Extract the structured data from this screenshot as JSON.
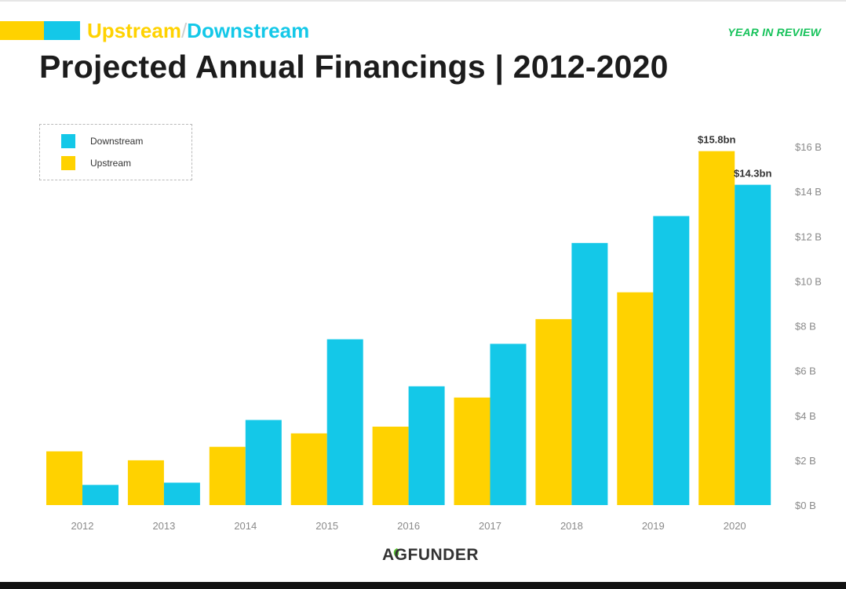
{
  "header": {
    "kicker_upstream": "Upstream",
    "kicker_slash": "/",
    "kicker_downstream": "Downstream",
    "year_in_review": "YEAR IN REVIEW",
    "title": "Projected Annual Financings | 2012-2020"
  },
  "colors": {
    "upstream": "#FFD200",
    "downstream": "#14C8E8",
    "review_green": "#15C25A"
  },
  "logo": {
    "text": "AGFUNDER",
    "icon": "leaf-logo-icon"
  },
  "chart_data": {
    "type": "bar",
    "categories": [
      "2012",
      "2013",
      "2014",
      "2015",
      "2016",
      "2017",
      "2018",
      "2019",
      "2020"
    ],
    "series": [
      {
        "name": "Upstream",
        "color": "#FFD200",
        "values": [
          2.4,
          2.0,
          2.6,
          3.2,
          3.5,
          4.8,
          8.3,
          9.5,
          15.8
        ]
      },
      {
        "name": "Downstream",
        "color": "#14C8E8",
        "values": [
          0.9,
          1.0,
          3.8,
          7.4,
          5.3,
          7.2,
          11.7,
          12.9,
          14.3
        ]
      }
    ],
    "data_labels": [
      {
        "series": "Upstream",
        "category": "2020",
        "text": "$15.8bn"
      },
      {
        "series": "Downstream",
        "category": "2020",
        "text": "$14.3bn"
      }
    ],
    "y_ticks": [
      0,
      2,
      4,
      6,
      8,
      10,
      12,
      14,
      16
    ],
    "y_tick_labels": [
      "$0 B",
      "$2 B",
      "$4 B",
      "$6 B",
      "$8 B",
      "$10 B",
      "$12 B",
      "$14 B",
      "$16 B"
    ],
    "ylim": [
      0,
      16
    ],
    "y_axis_side": "right",
    "grid": false,
    "legend": {
      "placement": "top-left",
      "entries": [
        "Downstream",
        "Upstream"
      ]
    },
    "title": "Projected Annual Financings | 2012-2020",
    "xlabel": "",
    "ylabel": ""
  }
}
